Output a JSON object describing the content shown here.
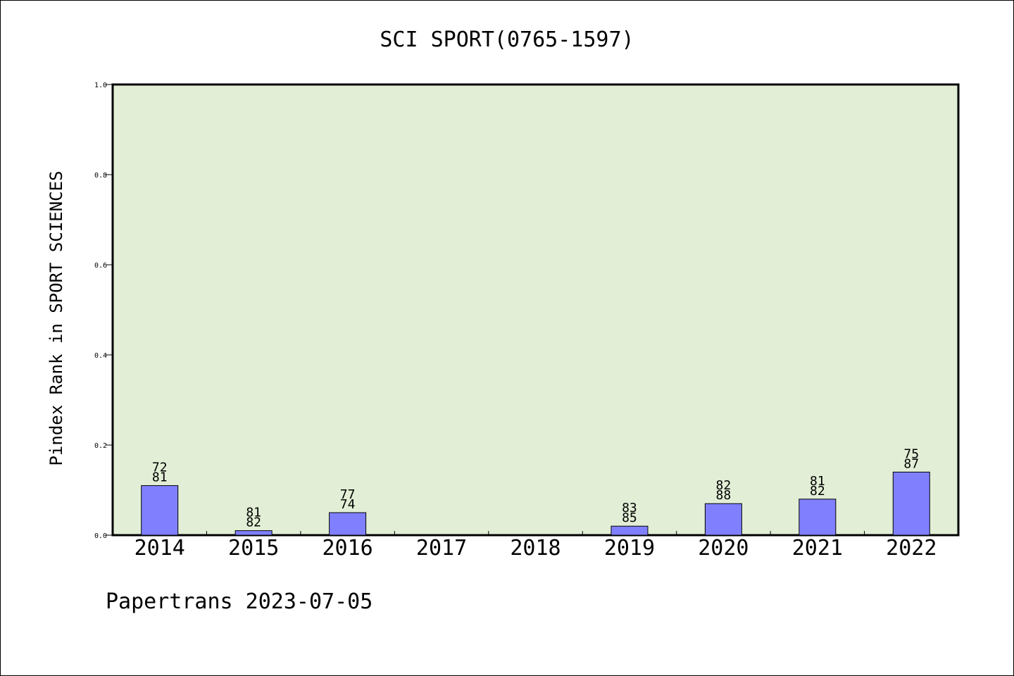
{
  "chart_data": {
    "type": "bar",
    "title": "SCI SPORT(0765-1597)",
    "ylabel": "Pindex Rank in SPORT SCIENCES",
    "xlabel": "",
    "ylim": [
      0,
      1.0
    ],
    "yticks": [
      "0.0",
      "0.2",
      "0.4",
      "0.6",
      "0.8",
      "1.0"
    ],
    "categories": [
      "2014",
      "2015",
      "2016",
      "2017",
      "2018",
      "2019",
      "2020",
      "2021",
      "2022"
    ],
    "values": [
      0.11,
      0.01,
      0.05,
      0,
      0,
      0.02,
      0.07,
      0.08,
      0.14
    ],
    "bar_labels": [
      [
        "72",
        "81"
      ],
      [
        "81",
        "82"
      ],
      [
        "77",
        "74"
      ],
      null,
      null,
      [
        "83",
        "85"
      ],
      [
        "82",
        "88"
      ],
      [
        "81",
        "82"
      ],
      [
        "75",
        "87"
      ]
    ],
    "grid": false,
    "legend": "none",
    "colors": {
      "plot_background": "#e2efd6",
      "bar_fill": "#8080ff",
      "bar_stroke": "#000000"
    }
  },
  "footer": "Papertrans 2023-07-05"
}
